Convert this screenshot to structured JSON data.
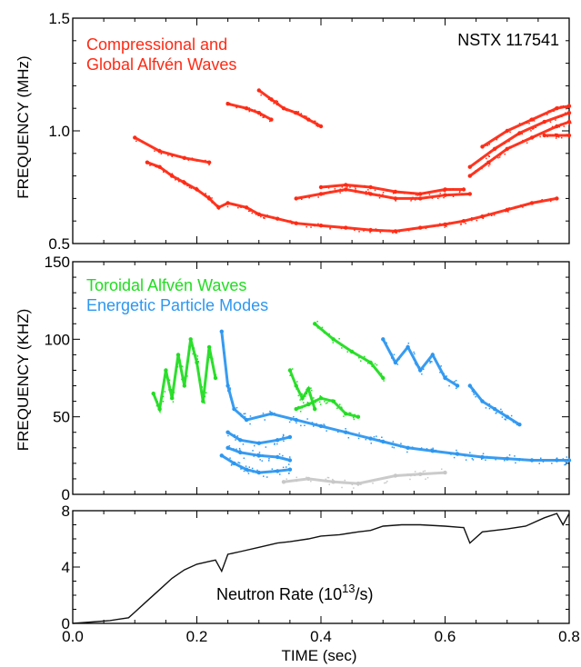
{
  "chart_data": [
    {
      "type": "scatter",
      "annotations": [
        "Compressional and",
        "Global Alfvén Waves",
        "NSTX 117541"
      ],
      "ylabel": "FREQUENCY (MHz)",
      "xlabel": "",
      "xlim": [
        0.0,
        0.8
      ],
      "ylim": [
        0.5,
        1.5
      ],
      "yticks": [
        "0.5",
        "1.0",
        "1.5"
      ],
      "colors": {
        "modes": "#ff2a14"
      },
      "series": [
        {
          "values": [
            [
              0.12,
              0.86
            ],
            [
              0.14,
              0.84
            ],
            [
              0.16,
              0.8
            ],
            [
              0.18,
              0.77
            ],
            [
              0.2,
              0.74
            ],
            [
              0.22,
              0.7
            ],
            [
              0.235,
              0.66
            ],
            [
              0.25,
              0.68
            ],
            [
              0.28,
              0.66
            ],
            [
              0.3,
              0.63
            ],
            [
              0.33,
              0.61
            ],
            [
              0.36,
              0.59
            ],
            [
              0.4,
              0.58
            ],
            [
              0.44,
              0.57
            ],
            [
              0.48,
              0.56
            ],
            [
              0.52,
              0.555
            ],
            [
              0.56,
              0.57
            ],
            [
              0.6,
              0.585
            ],
            [
              0.63,
              0.6
            ],
            [
              0.66,
              0.62
            ],
            [
              0.7,
              0.65
            ],
            [
              0.74,
              0.68
            ],
            [
              0.78,
              0.7
            ]
          ]
        },
        {
          "values": [
            [
              0.1,
              0.97
            ],
            [
              0.14,
              0.91
            ],
            [
              0.18,
              0.88
            ],
            [
              0.22,
              0.86
            ]
          ]
        },
        {
          "values": [
            [
              0.36,
              0.7
            ],
            [
              0.4,
              0.72
            ],
            [
              0.44,
              0.74
            ],
            [
              0.48,
              0.72
            ],
            [
              0.52,
              0.7
            ],
            [
              0.56,
              0.7
            ],
            [
              0.6,
              0.715
            ],
            [
              0.64,
              0.72
            ]
          ]
        },
        {
          "values": [
            [
              0.4,
              0.75
            ],
            [
              0.44,
              0.76
            ],
            [
              0.48,
              0.75
            ],
            [
              0.52,
              0.73
            ],
            [
              0.56,
              0.72
            ],
            [
              0.6,
              0.74
            ],
            [
              0.63,
              0.74
            ]
          ]
        },
        {
          "values": [
            [
              0.3,
              1.18
            ],
            [
              0.32,
              1.14
            ],
            [
              0.34,
              1.1
            ],
            [
              0.36,
              1.08
            ],
            [
              0.38,
              1.05
            ],
            [
              0.4,
              1.02
            ]
          ]
        },
        {
          "values": [
            [
              0.25,
              1.12
            ],
            [
              0.28,
              1.1
            ],
            [
              0.3,
              1.08
            ],
            [
              0.32,
              1.05
            ]
          ]
        },
        {
          "values": [
            [
              0.64,
              0.8
            ],
            [
              0.67,
              0.86
            ],
            [
              0.7,
              0.92
            ],
            [
              0.74,
              0.97
            ],
            [
              0.78,
              1.02
            ],
            [
              0.8,
              1.04
            ]
          ]
        },
        {
          "values": [
            [
              0.64,
              0.84
            ],
            [
              0.68,
              0.92
            ],
            [
              0.72,
              0.99
            ],
            [
              0.76,
              1.04
            ],
            [
              0.8,
              1.08
            ]
          ]
        },
        {
          "values": [
            [
              0.66,
              0.93
            ],
            [
              0.7,
              1.0
            ],
            [
              0.74,
              1.05
            ],
            [
              0.78,
              1.1
            ],
            [
              0.8,
              1.11
            ]
          ]
        },
        {
          "values": [
            [
              0.76,
              0.98
            ],
            [
              0.78,
              0.98
            ],
            [
              0.8,
              0.98
            ]
          ]
        }
      ]
    },
    {
      "type": "scatter",
      "annotations": [
        "Toroidal Alfvén Waves",
        "Energetic Particle Modes"
      ],
      "ylabel": "FREQUENCY (KHZ)",
      "xlabel": "",
      "xlim": [
        0.0,
        0.8
      ],
      "ylim": [
        0,
        150
      ],
      "yticks": [
        "0",
        "50",
        "100",
        "150"
      ],
      "colors": {
        "taw": "#22dd22",
        "epm": "#2d97f0",
        "faint": "#c8c8c8"
      },
      "series": [
        {
          "values": [
            [
              0.13,
              65
            ],
            [
              0.14,
              55
            ],
            [
              0.15,
              80
            ],
            [
              0.16,
              62
            ],
            [
              0.17,
              90
            ],
            [
              0.18,
              70
            ],
            [
              0.19,
              100
            ],
            [
              0.2,
              85
            ],
            [
              0.21,
              60
            ],
            [
              0.22,
              95
            ],
            [
              0.23,
              75
            ]
          ]
        },
        {
          "values": [
            [
              0.35,
              80
            ],
            [
              0.36,
              70
            ],
            [
              0.37,
              62
            ],
            [
              0.38,
              68
            ],
            [
              0.39,
              55
            ]
          ]
        },
        {
          "values": [
            [
              0.39,
              110
            ],
            [
              0.42,
              100
            ],
            [
              0.45,
              92
            ],
            [
              0.48,
              85
            ],
            [
              0.5,
              75
            ]
          ]
        },
        {
          "values": [
            [
              0.36,
              55
            ],
            [
              0.38,
              58
            ],
            [
              0.4,
              62
            ],
            [
              0.42,
              60
            ],
            [
              0.44,
              52
            ],
            [
              0.46,
              50
            ]
          ]
        },
        {
          "values": [
            [
              0.24,
              105
            ],
            [
              0.25,
              70
            ],
            [
              0.26,
              55
            ],
            [
              0.28,
              48
            ],
            [
              0.32,
              52
            ],
            [
              0.36,
              48
            ],
            [
              0.4,
              44
            ],
            [
              0.44,
              40
            ],
            [
              0.48,
              36
            ],
            [
              0.5,
              34
            ],
            [
              0.54,
              30
            ],
            [
              0.58,
              28
            ],
            [
              0.62,
              26
            ],
            [
              0.66,
              24
            ],
            [
              0.7,
              23
            ],
            [
              0.74,
              22
            ],
            [
              0.78,
              22
            ],
            [
              0.8,
              22
            ]
          ]
        },
        {
          "values": [
            [
              0.25,
              40
            ],
            [
              0.27,
              35
            ],
            [
              0.3,
              33
            ],
            [
              0.33,
              35
            ],
            [
              0.35,
              37
            ]
          ]
        },
        {
          "values": [
            [
              0.25,
              30
            ],
            [
              0.27,
              27
            ],
            [
              0.3,
              25
            ],
            [
              0.33,
              24
            ],
            [
              0.35,
              22
            ]
          ]
        },
        {
          "values": [
            [
              0.24,
              25
            ],
            [
              0.26,
              20
            ],
            [
              0.28,
              16
            ],
            [
              0.3,
              14
            ],
            [
              0.33,
              15
            ],
            [
              0.35,
              16
            ]
          ]
        },
        {
          "values": [
            [
              0.5,
              100
            ],
            [
              0.52,
              85
            ],
            [
              0.54,
              95
            ],
            [
              0.56,
              80
            ],
            [
              0.58,
              90
            ],
            [
              0.6,
              75
            ],
            [
              0.62,
              70
            ]
          ]
        },
        {
          "values": [
            [
              0.64,
              70
            ],
            [
              0.66,
              60
            ],
            [
              0.68,
              55
            ],
            [
              0.7,
              50
            ],
            [
              0.72,
              45
            ]
          ]
        },
        {
          "values": [
            [
              0.34,
              8
            ],
            [
              0.38,
              10
            ],
            [
              0.42,
              8
            ],
            [
              0.46,
              7
            ],
            [
              0.52,
              12
            ],
            [
              0.56,
              13
            ],
            [
              0.6,
              14
            ]
          ]
        }
      ]
    },
    {
      "type": "line",
      "annotations": [
        "Neutron Rate (10",
        "13",
        "/s)"
      ],
      "ylabel": "",
      "xlabel": "TIME (sec)",
      "xlim": [
        0.0,
        0.8
      ],
      "ylim": [
        0,
        8
      ],
      "xticks": [
        "0.0",
        "0.2",
        "0.4",
        "0.6",
        "0.8"
      ],
      "yticks": [
        "0",
        "4",
        "8"
      ],
      "colors": {
        "line": "#111111"
      },
      "series": [
        {
          "x": [
            0.0,
            0.03,
            0.06,
            0.09,
            0.1,
            0.12,
            0.14,
            0.16,
            0.18,
            0.2,
            0.22,
            0.23,
            0.24,
            0.25,
            0.27,
            0.3,
            0.33,
            0.35,
            0.38,
            0.4,
            0.43,
            0.46,
            0.48,
            0.5,
            0.53,
            0.56,
            0.6,
            0.63,
            0.64,
            0.66,
            0.7,
            0.73,
            0.76,
            0.78,
            0.79,
            0.8
          ],
          "y": [
            0.0,
            0.1,
            0.2,
            0.4,
            0.8,
            1.6,
            2.4,
            3.2,
            3.8,
            4.2,
            4.4,
            4.5,
            3.7,
            4.9,
            5.1,
            5.4,
            5.7,
            5.8,
            6.0,
            6.2,
            6.3,
            6.5,
            6.6,
            6.9,
            7.0,
            7.0,
            6.9,
            6.8,
            5.7,
            6.5,
            6.7,
            6.9,
            7.5,
            7.8,
            7.0,
            7.8
          ]
        }
      ]
    }
  ]
}
